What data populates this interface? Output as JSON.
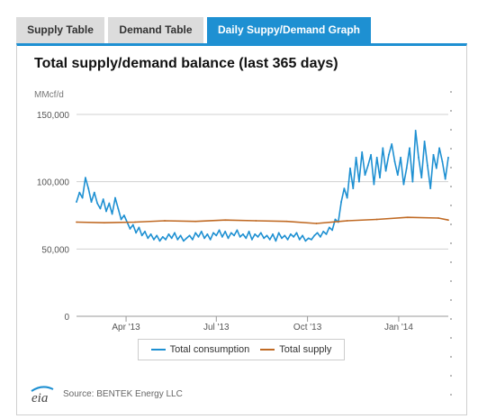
{
  "tabs": [
    {
      "label": "Supply Table",
      "active": false
    },
    {
      "label": "Demand Table",
      "active": false
    },
    {
      "label": "Daily Suppy/Demand Graph",
      "active": true
    }
  ],
  "colors": {
    "accent": "#1e90d2",
    "consumption": "#1e90d2",
    "supply": "#c06a24"
  },
  "chart_data": {
    "type": "line",
    "title": "Total supply/demand balance (last 365 days)",
    "ylabel": "MMcf/d",
    "xlabel": "",
    "ylim": [
      0,
      150000
    ],
    "yticks": [
      0,
      50000,
      100000,
      150000
    ],
    "ytick_labels": [
      "0",
      "50,000",
      "100,000",
      "150,000"
    ],
    "xlim": [
      "2013-02-10",
      "2014-02-20"
    ],
    "xticks": [
      "2013-04-01",
      "2013-07-01",
      "2013-10-01",
      "2014-01-01"
    ],
    "xtick_labels": [
      "Apr '13",
      "Jul '13",
      "Oct '13",
      "Jan '14"
    ],
    "grid": "horizontal",
    "legend_position": "bottom-center",
    "series": [
      {
        "name": "Total consumption",
        "color": "#1e90d2",
        "x": [
          "2013-02-10",
          "2013-02-13",
          "2013-02-16",
          "2013-02-19",
          "2013-02-22",
          "2013-02-25",
          "2013-02-28",
          "2013-03-03",
          "2013-03-06",
          "2013-03-09",
          "2013-03-12",
          "2013-03-15",
          "2013-03-18",
          "2013-03-21",
          "2013-03-24",
          "2013-03-27",
          "2013-03-30",
          "2013-04-02",
          "2013-04-05",
          "2013-04-08",
          "2013-04-11",
          "2013-04-14",
          "2013-04-17",
          "2013-04-20",
          "2013-04-23",
          "2013-04-26",
          "2013-04-29",
          "2013-05-02",
          "2013-05-05",
          "2013-05-08",
          "2013-05-11",
          "2013-05-14",
          "2013-05-17",
          "2013-05-20",
          "2013-05-23",
          "2013-05-26",
          "2013-05-29",
          "2013-06-01",
          "2013-06-04",
          "2013-06-07",
          "2013-06-10",
          "2013-06-13",
          "2013-06-16",
          "2013-06-19",
          "2013-06-22",
          "2013-06-25",
          "2013-06-28",
          "2013-07-01",
          "2013-07-04",
          "2013-07-07",
          "2013-07-10",
          "2013-07-13",
          "2013-07-16",
          "2013-07-19",
          "2013-07-22",
          "2013-07-25",
          "2013-07-28",
          "2013-07-31",
          "2013-08-03",
          "2013-08-06",
          "2013-08-09",
          "2013-08-12",
          "2013-08-15",
          "2013-08-18",
          "2013-08-21",
          "2013-08-24",
          "2013-08-27",
          "2013-08-30",
          "2013-09-02",
          "2013-09-05",
          "2013-09-08",
          "2013-09-11",
          "2013-09-14",
          "2013-09-17",
          "2013-09-20",
          "2013-09-23",
          "2013-09-26",
          "2013-09-29",
          "2013-10-02",
          "2013-10-05",
          "2013-10-08",
          "2013-10-11",
          "2013-10-14",
          "2013-10-17",
          "2013-10-20",
          "2013-10-23",
          "2013-10-26",
          "2013-10-29",
          "2013-11-01",
          "2013-11-04",
          "2013-11-07",
          "2013-11-10",
          "2013-11-13",
          "2013-11-16",
          "2013-11-19",
          "2013-11-22",
          "2013-11-25",
          "2013-11-28",
          "2013-12-01",
          "2013-12-04",
          "2013-12-07",
          "2013-12-10",
          "2013-12-13",
          "2013-12-16",
          "2013-12-19",
          "2013-12-22",
          "2013-12-25",
          "2013-12-28",
          "2013-12-31",
          "2014-01-03",
          "2014-01-06",
          "2014-01-09",
          "2014-01-12",
          "2014-01-15",
          "2014-01-18",
          "2014-01-21",
          "2014-01-24",
          "2014-01-27",
          "2014-01-30",
          "2014-02-02",
          "2014-02-05",
          "2014-02-08",
          "2014-02-11",
          "2014-02-14",
          "2014-02-17",
          "2014-02-20"
        ],
        "values": [
          85000,
          92000,
          88000,
          103000,
          95000,
          85000,
          92000,
          84000,
          80000,
          87000,
          78000,
          84000,
          76000,
          88000,
          80000,
          72000,
          75000,
          70000,
          65000,
          68000,
          62000,
          66000,
          60000,
          63000,
          58000,
          61000,
          57000,
          60000,
          56000,
          59000,
          57000,
          61000,
          58000,
          62000,
          57000,
          60000,
          56000,
          58000,
          60000,
          57000,
          62000,
          59000,
          63000,
          58000,
          61000,
          57000,
          62000,
          60000,
          64000,
          59000,
          63000,
          58000,
          62000,
          60000,
          64000,
          59000,
          61000,
          58000,
          63000,
          57000,
          61000,
          59000,
          62000,
          58000,
          60000,
          57000,
          61000,
          56000,
          62000,
          58000,
          60000,
          57000,
          61000,
          59000,
          62000,
          57000,
          60000,
          56000,
          58000,
          57000,
          60000,
          62000,
          59000,
          63000,
          61000,
          66000,
          64000,
          72000,
          70000,
          85000,
          95000,
          88000,
          110000,
          95000,
          118000,
          100000,
          122000,
          105000,
          112000,
          120000,
          98000,
          118000,
          103000,
          125000,
          108000,
          120000,
          128000,
          115000,
          105000,
          118000,
          98000,
          110000,
          125000,
          100000,
          138000,
          118000,
          103000,
          130000,
          112000,
          95000,
          120000,
          110000,
          125000,
          115000,
          102000,
          118000
        ]
      },
      {
        "name": "Total supply",
        "color": "#c06a24",
        "x": [
          "2013-02-10",
          "2013-03-10",
          "2013-04-10",
          "2013-05-10",
          "2013-06-10",
          "2013-07-10",
          "2013-08-10",
          "2013-09-10",
          "2013-10-10",
          "2013-11-10",
          "2013-12-10",
          "2014-01-10",
          "2014-02-10",
          "2014-02-20"
        ],
        "values": [
          70000,
          69500,
          70000,
          71000,
          70500,
          71500,
          71000,
          70500,
          69000,
          71000,
          72000,
          73500,
          73000,
          71500
        ]
      }
    ]
  },
  "source": "Source: BENTEK Energy LLC",
  "logo_text": "eia"
}
